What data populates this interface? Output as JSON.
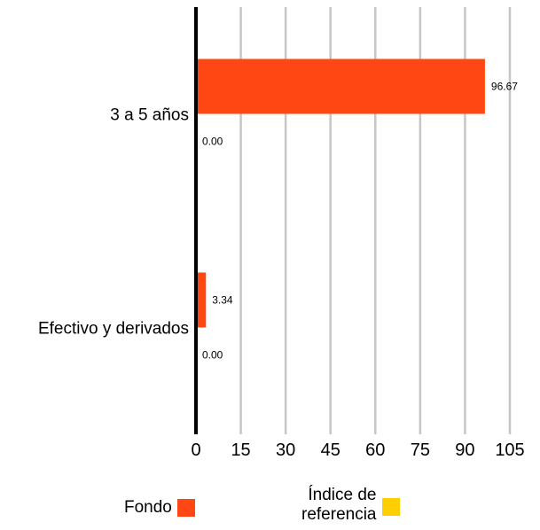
{
  "chart_data": {
    "type": "bar",
    "orientation": "horizontal",
    "categories": [
      "3 a 5 años",
      "Efectivo y derivados"
    ],
    "series": [
      {
        "name": "Fondo",
        "values": [
          96.67,
          3.34
        ],
        "labels": [
          "96.67",
          "3.34"
        ],
        "color": "#ff4713"
      },
      {
        "name": "Índice de referencia",
        "values": [
          0.0,
          0.0
        ],
        "labels": [
          "0.00",
          "0.00"
        ],
        "color": "#ffce00"
      }
    ],
    "xlim": [
      0,
      105
    ],
    "xticks": [
      "0",
      "15",
      "30",
      "45",
      "60",
      "75",
      "90",
      "105"
    ],
    "grid": true,
    "legend_position": "bottom"
  },
  "legend": {
    "items": [
      {
        "label": "Fondo",
        "color": "#ff4713"
      },
      {
        "label_line1": "Índice de",
        "label_line2": "referencia",
        "color": "#ffce00"
      }
    ]
  }
}
